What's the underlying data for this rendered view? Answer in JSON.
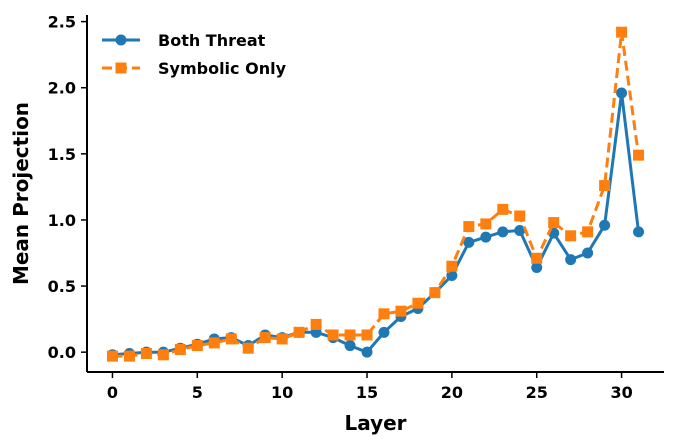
{
  "chart_data": {
    "type": "line",
    "title": "",
    "xlabel": "Layer",
    "ylabel": "Mean Projection",
    "xlim": [
      -1.5,
      32.5
    ],
    "ylim": [
      -0.15,
      2.55
    ],
    "xticks": [
      0,
      5,
      10,
      15,
      20,
      25,
      30
    ],
    "yticks": [
      0.0,
      0.5,
      1.0,
      1.5,
      2.0,
      2.5
    ],
    "ytick_labels": [
      "0.0",
      "0.5",
      "1.0",
      "1.5",
      "2.0",
      "2.5"
    ],
    "grid": false,
    "legend_position": "top-left",
    "series": [
      {
        "name": "Both Threat",
        "color": "#1f77b4",
        "linestyle": "solid",
        "marker": "circle",
        "x": [
          0,
          1,
          2,
          3,
          4,
          5,
          6,
          7,
          8,
          9,
          10,
          11,
          12,
          13,
          14,
          15,
          16,
          17,
          18,
          19,
          20,
          21,
          22,
          23,
          24,
          25,
          26,
          27,
          28,
          29,
          30,
          31
        ],
        "y": [
          -0.02,
          -0.01,
          0.0,
          0.0,
          0.03,
          0.06,
          0.1,
          0.11,
          0.05,
          0.13,
          0.11,
          0.15,
          0.15,
          0.11,
          0.05,
          0.0,
          0.15,
          0.27,
          0.33,
          0.45,
          0.58,
          0.83,
          0.87,
          0.91,
          0.92,
          0.64,
          0.9,
          0.7,
          0.75,
          0.96,
          1.96,
          0.91
        ]
      },
      {
        "name": "Symbolic Only",
        "color": "#ff7f0e",
        "linestyle": "dashed",
        "marker": "square",
        "x": [
          0,
          1,
          2,
          3,
          4,
          5,
          6,
          7,
          8,
          9,
          10,
          11,
          12,
          13,
          14,
          15,
          16,
          17,
          18,
          19,
          20,
          21,
          22,
          23,
          24,
          25,
          26,
          27,
          28,
          29,
          30,
          31
        ],
        "y": [
          -0.03,
          -0.03,
          -0.01,
          -0.02,
          0.02,
          0.05,
          0.07,
          0.1,
          0.03,
          0.11,
          0.1,
          0.15,
          0.21,
          0.13,
          0.13,
          0.13,
          0.29,
          0.31,
          0.37,
          0.45,
          0.65,
          0.95,
          0.97,
          1.08,
          1.03,
          0.71,
          0.98,
          0.88,
          0.91,
          1.26,
          2.42,
          1.49
        ]
      }
    ]
  }
}
